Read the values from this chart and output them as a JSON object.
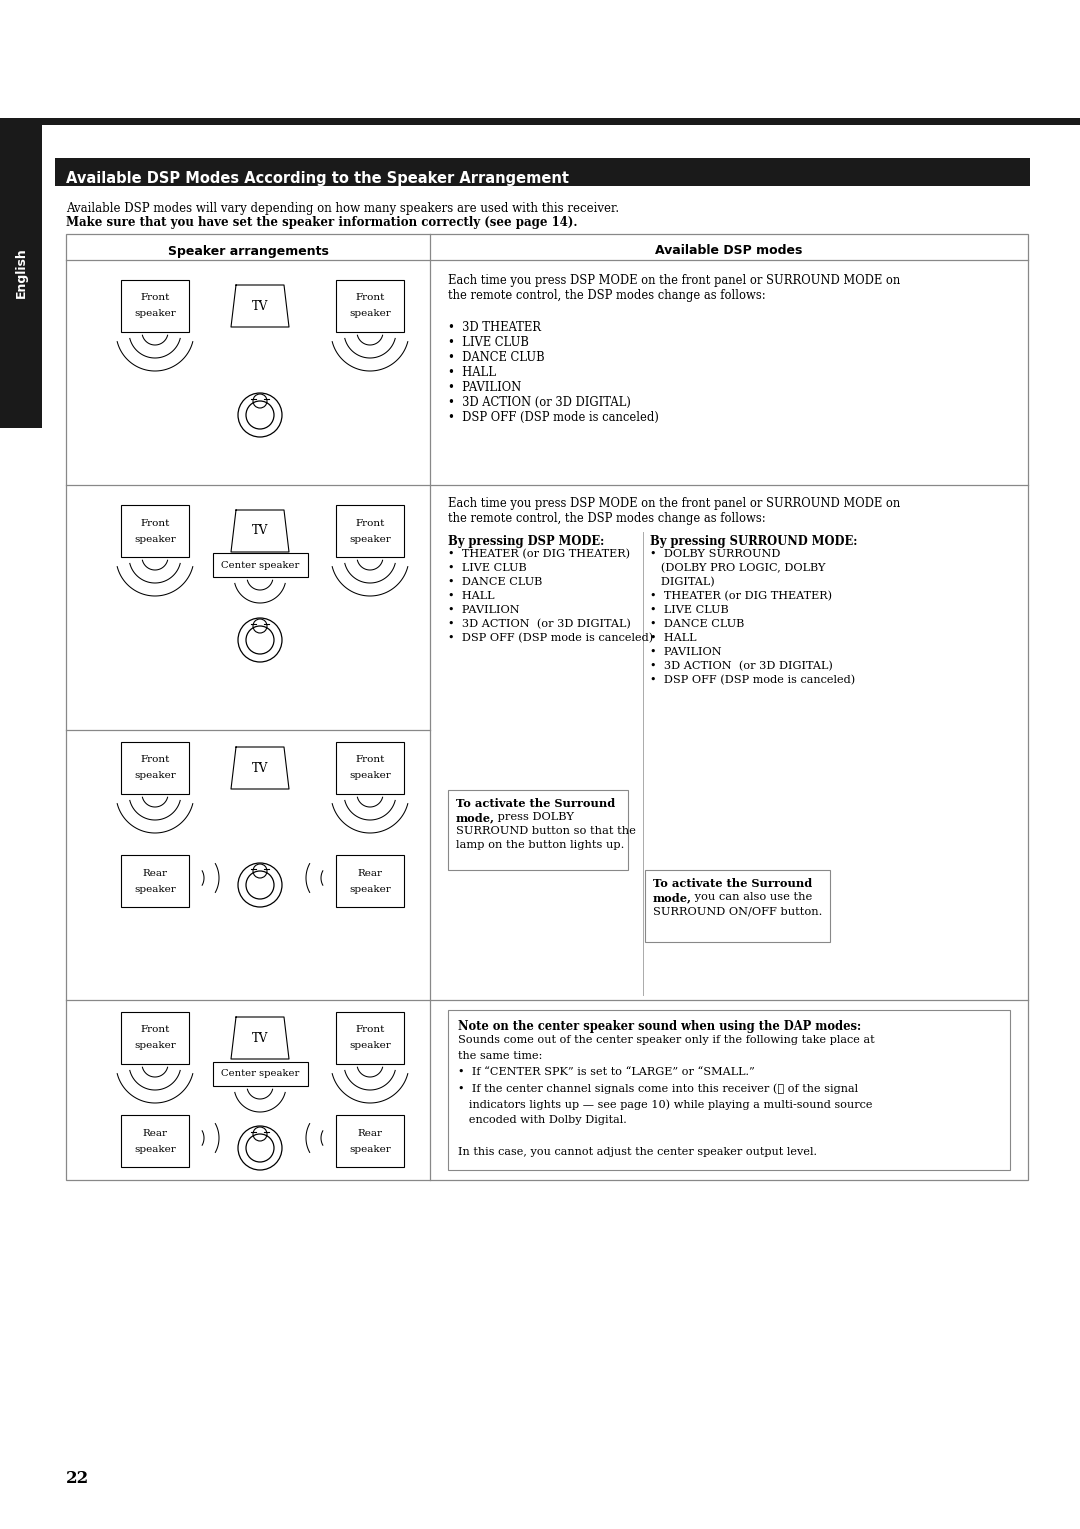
{
  "page_bg": "#ffffff",
  "sidebar_color": "#1a1a1a",
  "sidebar_text": "English",
  "title_text": "Available DSP Modes According to the Speaker Arrangement",
  "intro_line1": "Available DSP modes will vary depending on how many speakers are used with this receiver.",
  "intro_line2": "Make sure that you have set the speaker information correctly (see page 14).",
  "col1_header": "Speaker arrangements",
  "col2_header": "Available DSP modes",
  "page_number": "22",
  "row1_right_text": [
    "Each time you press DSP MODE on the front panel or SURROUND MODE on",
    "the remote control, the DSP modes change as follows:",
    "",
    "•  3D THEATER",
    "•  LIVE CLUB",
    "•  DANCE CLUB",
    "•  HALL",
    "•  PAVILION",
    "•  3D ACTION (or 3D DIGITAL)",
    "•  DSP OFF (DSP mode is canceled)"
  ],
  "row2_right_intro": [
    "Each time you press DSP MODE on the front panel or SURROUND MODE on",
    "the remote control, the DSP modes change as follows:"
  ],
  "row2_dsp_header": "By pressing DSP MODE:",
  "row2_dsp_items": [
    "•  THEATER (or DIG THEATER)",
    "•  LIVE CLUB",
    "•  DANCE CLUB",
    "•  HALL",
    "•  PAVILION",
    "•  3D ACTION  (or 3D DIGITAL)",
    "•  DSP OFF (DSP mode is canceled)"
  ],
  "row2_surround_header": "By pressing SURROUND MODE:",
  "row2_surround_items": [
    "•  DOLBY SURROUND",
    "   (DOLBY PRO LOGIC, DOLBY",
    "   DIGITAL)",
    "•  THEATER (or DIG THEATER)",
    "•  LIVE CLUB",
    "•  DANCE CLUB",
    "•  HALL",
    "•  PAVILION",
    "•  3D ACTION  (or 3D DIGITAL)",
    "•  DSP OFF (DSP mode is canceled)"
  ],
  "row4_note_header": "Note on the center speaker sound when using the DAP modes:",
  "row4_note_text": [
    "Sounds come out of the center speaker only if the following take place at",
    "the same time:",
    "•  If “CENTER SPK” is set to “LARGE” or “SMALL.”",
    "•  If the center channel signals come into this receiver (Ⓒ of the signal",
    "   indicators lights up — see page 10) while playing a multi-sound source",
    "   encoded with Dolby Digital.",
    "",
    "In this case, you cannot adjust the center speaker output level."
  ]
}
